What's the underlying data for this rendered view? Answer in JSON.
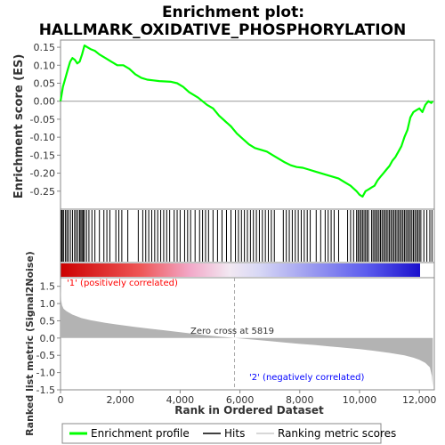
{
  "title_line1": "Enrichment plot:",
  "title_line2": "HALLMARK_OXIDATIVE_PHOSPHORYLATION",
  "colors": {
    "es_line": "#00ff00",
    "hits": "#000000",
    "metric_fill": "#b3b3b3",
    "positive_text": "#ff0000",
    "negative_text": "#0000ff",
    "zero_line": "#aaaaaa"
  },
  "chart_data": [
    {
      "type": "line",
      "ylabel": "Enrichment score (ES)",
      "xlim": [
        0,
        12500
      ],
      "ylim": [
        -0.3,
        0.17
      ],
      "yticks": [
        "0.15",
        "0.10",
        "0.05",
        "0.00",
        "-0.05",
        "-0.10",
        "-0.15",
        "-0.20",
        "-0.25"
      ],
      "series": [
        {
          "name": "Enrichment profile",
          "x": [
            0,
            80,
            150,
            250,
            320,
            400,
            480,
            560,
            640,
            720,
            800,
            900,
            1000,
            1150,
            1300,
            1500,
            1700,
            1900,
            2100,
            2300,
            2500,
            2700,
            2900,
            3100,
            3300,
            3500,
            3700,
            3900,
            4100,
            4300,
            4600,
            4900,
            5100,
            5300,
            5500,
            5700,
            5900,
            6100,
            6300,
            6500,
            6700,
            6900,
            7100,
            7300,
            7500,
            7700,
            7900,
            8100,
            8300,
            8500,
            8700,
            8900,
            9100,
            9300,
            9500,
            9700,
            9900,
            10000,
            10100,
            10200,
            10300,
            10400,
            10500,
            10600,
            10700,
            10800,
            10900,
            11000,
            11100,
            11200,
            11300,
            11400,
            11500,
            11600,
            11700,
            11800,
            11900,
            12000,
            12100,
            12200,
            12300,
            12400,
            12450
          ],
          "values": [
            0.0,
            0.04,
            0.06,
            0.09,
            0.11,
            0.12,
            0.115,
            0.105,
            0.11,
            0.13,
            0.155,
            0.15,
            0.145,
            0.14,
            0.13,
            0.12,
            0.11,
            0.1,
            0.1,
            0.09,
            0.075,
            0.065,
            0.06,
            0.058,
            0.056,
            0.055,
            0.054,
            0.05,
            0.04,
            0.025,
            0.01,
            -0.01,
            -0.02,
            -0.04,
            -0.055,
            -0.07,
            -0.09,
            -0.105,
            -0.12,
            -0.13,
            -0.135,
            -0.14,
            -0.15,
            -0.16,
            -0.17,
            -0.178,
            -0.183,
            -0.185,
            -0.19,
            -0.195,
            -0.2,
            -0.205,
            -0.21,
            -0.215,
            -0.225,
            -0.235,
            -0.25,
            -0.26,
            -0.265,
            -0.25,
            -0.245,
            -0.24,
            -0.235,
            -0.22,
            -0.21,
            -0.2,
            -0.19,
            -0.18,
            -0.165,
            -0.155,
            -0.14,
            -0.125,
            -0.1,
            -0.08,
            -0.045,
            -0.03,
            -0.025,
            -0.02,
            -0.03,
            -0.01,
            0.0,
            -0.005,
            0.0
          ]
        }
      ]
    },
    {
      "type": "scatter",
      "name": "Hits",
      "x": [
        30,
        60,
        100,
        160,
        210,
        260,
        330,
        400,
        470,
        520,
        580,
        640,
        680,
        720,
        760,
        800,
        870,
        950,
        1050,
        1150,
        1300,
        1450,
        1550,
        1650,
        1850,
        1950,
        2050,
        2250,
        2600,
        2750,
        2850,
        2950,
        3050,
        3150,
        3250,
        3350,
        3450,
        3550,
        3650,
        3800,
        3900,
        4000,
        4150,
        4250,
        4350,
        4500,
        4650,
        4750,
        4850,
        4950,
        5100,
        5250,
        5400,
        5550,
        5700,
        5850,
        5950,
        6050,
        6150,
        6250,
        6350,
        6450,
        6550,
        6650,
        6750,
        6850,
        6950,
        7050,
        7150,
        7450,
        7550,
        7650,
        7750,
        7850,
        7950,
        8050,
        8150,
        8250,
        8350,
        8550,
        8700,
        8850,
        8950,
        9050,
        9150,
        9300,
        9600,
        9700,
        9800,
        9900,
        9950,
        10000,
        10050,
        10100,
        10150,
        10200,
        10250,
        10300,
        10400,
        10450,
        10500,
        10550,
        10600,
        10650,
        10700,
        10750,
        10800,
        10850,
        10900,
        10950,
        11000,
        11050,
        11100,
        11150,
        11200,
        11250,
        11300,
        11350,
        11400,
        11450,
        11500,
        11550,
        11600,
        11650,
        11700,
        11750,
        11800,
        11850,
        11900,
        11950,
        12000,
        12050,
        12150,
        12250,
        12350,
        12420
      ]
    },
    {
      "type": "area",
      "ylabel": "Ranked list metric (Signal2Noise)",
      "xlabel": "Rank in Ordered Dataset",
      "xlim": [
        0,
        12500
      ],
      "ylim": [
        -1.5,
        1.75
      ],
      "xticks": [
        "0",
        "2,000",
        "4,000",
        "6,000",
        "8,000",
        "10,000",
        "12,000"
      ],
      "xtick_values": [
        0,
        2000,
        4000,
        6000,
        8000,
        10000,
        12000
      ],
      "yticks": [
        "1.5",
        "1.0",
        "0.5",
        "0.0",
        "-0.5",
        "-1.0",
        "-1.5"
      ],
      "ytick_values": [
        1.5,
        1.0,
        0.5,
        0.0,
        -0.5,
        -1.0,
        -1.5
      ],
      "x": [
        0,
        20,
        50,
        100,
        200,
        400,
        700,
        1000,
        1500,
        2000,
        2500,
        3000,
        3500,
        4000,
        4500,
        5000,
        5500,
        5819,
        6500,
        7000,
        7500,
        8000,
        8500,
        9000,
        9500,
        10000,
        10500,
        11000,
        11500,
        11800,
        12000,
        12200,
        12350,
        12420,
        12450
      ],
      "values": [
        1.6,
        1.1,
        0.95,
        0.85,
        0.78,
        0.68,
        0.58,
        0.52,
        0.44,
        0.38,
        0.32,
        0.27,
        0.22,
        0.17,
        0.12,
        0.07,
        0.03,
        0.0,
        -0.05,
        -0.09,
        -0.13,
        -0.17,
        -0.2,
        -0.24,
        -0.28,
        -0.32,
        -0.37,
        -0.43,
        -0.5,
        -0.57,
        -0.63,
        -0.72,
        -0.85,
        -1.1,
        -1.4
      ],
      "zero_cross_label": "Zero cross at 5819",
      "zero_cross": 5819,
      "pos_label": "'1' (positively correlated)",
      "neg_label": "'2' (negatively correlated)"
    }
  ],
  "legend": {
    "profile": "Enrichment profile",
    "hits": "Hits",
    "metric": "Ranking metric scores"
  }
}
